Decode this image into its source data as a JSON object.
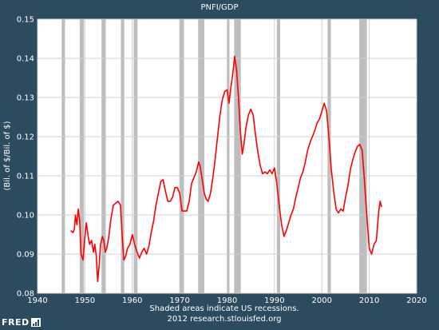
{
  "chart_data": {
    "type": "line",
    "title": "PNFI/GDP",
    "ylabel": "(Bil. of $/Bil. of $)",
    "xlim": [
      1940,
      2020
    ],
    "ylim": [
      0.08,
      0.15
    ],
    "x_ticks": [
      1940,
      1950,
      1960,
      1970,
      1980,
      1990,
      2000,
      2010,
      2020
    ],
    "y_ticks": [
      0.08,
      0.09,
      0.1,
      0.11,
      0.12,
      0.13,
      0.14,
      0.15
    ],
    "y_tick_labels": [
      "0.08",
      "0.09",
      "0.10",
      "0.11",
      "0.12",
      "0.13",
      "0.14",
      "0.15"
    ],
    "grid": true,
    "recessions": [
      [
        1945.1,
        1945.8
      ],
      [
        1948.9,
        1949.8
      ],
      [
        1953.5,
        1954.4
      ],
      [
        1957.6,
        1958.3
      ],
      [
        1960.3,
        1961.1
      ],
      [
        1969.9,
        1970.9
      ],
      [
        1973.9,
        1975.2
      ],
      [
        1980.0,
        1980.5
      ],
      [
        1981.5,
        1982.9
      ],
      [
        1990.5,
        1991.2
      ],
      [
        2001.2,
        2001.9
      ],
      [
        2007.9,
        2009.5
      ]
    ],
    "series": [
      {
        "color": "#ff0000",
        "points": [
          [
            1947.0,
            0.096
          ],
          [
            1947.5,
            0.0955
          ],
          [
            1947.8,
            0.0965
          ],
          [
            1948.0,
            0.1
          ],
          [
            1948.3,
            0.0975
          ],
          [
            1948.6,
            0.1015
          ],
          [
            1948.9,
            0.0985
          ],
          [
            1949.2,
            0.09
          ],
          [
            1949.6,
            0.0885
          ],
          [
            1950.0,
            0.0945
          ],
          [
            1950.3,
            0.098
          ],
          [
            1950.7,
            0.0945
          ],
          [
            1951.0,
            0.0925
          ],
          [
            1951.4,
            0.0935
          ],
          [
            1951.8,
            0.0905
          ],
          [
            1952.1,
            0.0925
          ],
          [
            1952.4,
            0.0895
          ],
          [
            1952.7,
            0.083
          ],
          [
            1953.0,
            0.087
          ],
          [
            1953.3,
            0.0925
          ],
          [
            1953.7,
            0.0945
          ],
          [
            1954.0,
            0.0935
          ],
          [
            1954.3,
            0.0905
          ],
          [
            1954.6,
            0.0915
          ],
          [
            1955.0,
            0.094
          ],
          [
            1955.5,
            0.099
          ],
          [
            1956.0,
            0.1025
          ],
          [
            1956.5,
            0.103
          ],
          [
            1957.0,
            0.1035
          ],
          [
            1957.5,
            0.1025
          ],
          [
            1957.9,
            0.094
          ],
          [
            1958.2,
            0.0885
          ],
          [
            1958.6,
            0.0895
          ],
          [
            1959.0,
            0.0915
          ],
          [
            1959.5,
            0.0925
          ],
          [
            1960.0,
            0.095
          ],
          [
            1960.5,
            0.0925
          ],
          [
            1961.0,
            0.0905
          ],
          [
            1961.5,
            0.089
          ],
          [
            1962.0,
            0.0905
          ],
          [
            1962.5,
            0.0915
          ],
          [
            1963.0,
            0.09
          ],
          [
            1963.5,
            0.092
          ],
          [
            1964.0,
            0.0955
          ],
          [
            1964.5,
            0.0985
          ],
          [
            1965.0,
            0.1025
          ],
          [
            1965.5,
            0.1055
          ],
          [
            1966.0,
            0.1085
          ],
          [
            1966.5,
            0.109
          ],
          [
            1967.0,
            0.106
          ],
          [
            1967.5,
            0.1035
          ],
          [
            1968.0,
            0.1035
          ],
          [
            1968.5,
            0.1045
          ],
          [
            1969.0,
            0.107
          ],
          [
            1969.5,
            0.107
          ],
          [
            1970.0,
            0.1055
          ],
          [
            1970.5,
            0.101
          ],
          [
            1971.0,
            0.101
          ],
          [
            1971.5,
            0.101
          ],
          [
            1972.0,
            0.1035
          ],
          [
            1972.5,
            0.108
          ],
          [
            1973.0,
            0.1095
          ],
          [
            1973.5,
            0.111
          ],
          [
            1974.0,
            0.1135
          ],
          [
            1974.3,
            0.1125
          ],
          [
            1974.7,
            0.1095
          ],
          [
            1975.2,
            0.1055
          ],
          [
            1975.6,
            0.104
          ],
          [
            1976.0,
            0.1035
          ],
          [
            1976.5,
            0.1055
          ],
          [
            1977.0,
            0.1095
          ],
          [
            1977.5,
            0.1145
          ],
          [
            1978.0,
            0.12
          ],
          [
            1978.5,
            0.1255
          ],
          [
            1979.0,
            0.1295
          ],
          [
            1979.5,
            0.1315
          ],
          [
            1980.0,
            0.132
          ],
          [
            1980.4,
            0.1285
          ],
          [
            1980.8,
            0.1325
          ],
          [
            1981.2,
            0.136
          ],
          [
            1981.6,
            0.1405
          ],
          [
            1982.0,
            0.137
          ],
          [
            1982.4,
            0.13
          ],
          [
            1982.8,
            0.1215
          ],
          [
            1983.2,
            0.1155
          ],
          [
            1983.6,
            0.1185
          ],
          [
            1984.0,
            0.1225
          ],
          [
            1984.5,
            0.1255
          ],
          [
            1985.0,
            0.127
          ],
          [
            1985.5,
            0.1255
          ],
          [
            1986.0,
            0.1205
          ],
          [
            1986.5,
            0.116
          ],
          [
            1987.0,
            0.1125
          ],
          [
            1987.5,
            0.1105
          ],
          [
            1988.0,
            0.111
          ],
          [
            1988.5,
            0.1105
          ],
          [
            1989.0,
            0.1115
          ],
          [
            1989.5,
            0.1105
          ],
          [
            1990.0,
            0.112
          ],
          [
            1990.5,
            0.108
          ],
          [
            1991.0,
            0.1025
          ],
          [
            1991.5,
            0.0975
          ],
          [
            1992.0,
            0.0945
          ],
          [
            1992.5,
            0.096
          ],
          [
            1993.0,
            0.098
          ],
          [
            1993.5,
            0.1
          ],
          [
            1994.0,
            0.1015
          ],
          [
            1994.5,
            0.1045
          ],
          [
            1995.0,
            0.107
          ],
          [
            1995.5,
            0.1095
          ],
          [
            1996.0,
            0.111
          ],
          [
            1996.5,
            0.1135
          ],
          [
            1997.0,
            0.1165
          ],
          [
            1997.5,
            0.1185
          ],
          [
            1998.0,
            0.12
          ],
          [
            1998.5,
            0.1215
          ],
          [
            1999.0,
            0.1235
          ],
          [
            1999.5,
            0.1245
          ],
          [
            2000.0,
            0.1265
          ],
          [
            2000.5,
            0.1285
          ],
          [
            2001.0,
            0.1265
          ],
          [
            2001.5,
            0.1195
          ],
          [
            2002.0,
            0.1115
          ],
          [
            2002.5,
            0.106
          ],
          [
            2003.0,
            0.1015
          ],
          [
            2003.5,
            0.1005
          ],
          [
            2004.0,
            0.1015
          ],
          [
            2004.5,
            0.101
          ],
          [
            2005.0,
            0.1045
          ],
          [
            2005.5,
            0.1075
          ],
          [
            2006.0,
            0.1115
          ],
          [
            2006.5,
            0.114
          ],
          [
            2007.0,
            0.116
          ],
          [
            2007.5,
            0.1175
          ],
          [
            2008.0,
            0.118
          ],
          [
            2008.5,
            0.1165
          ],
          [
            2009.0,
            0.1085
          ],
          [
            2009.5,
            0.0995
          ],
          [
            2010.0,
            0.0915
          ],
          [
            2010.5,
            0.09
          ],
          [
            2011.0,
            0.0925
          ],
          [
            2011.5,
            0.0935
          ],
          [
            2012.0,
            0.101
          ],
          [
            2012.3,
            0.1035
          ],
          [
            2012.6,
            0.102
          ]
        ]
      }
    ]
  },
  "footer": {
    "note_line1": "Shaded areas indicate US recessions.",
    "note_line2": "2012 research.stlouisfed.org",
    "logo_text": "FRED"
  },
  "colors": {
    "background": "#2b4b5f",
    "plot_background": "#ffffff",
    "grid": "#d0d0d0",
    "recession": "#bdbdbd",
    "line": "#ff0000"
  }
}
